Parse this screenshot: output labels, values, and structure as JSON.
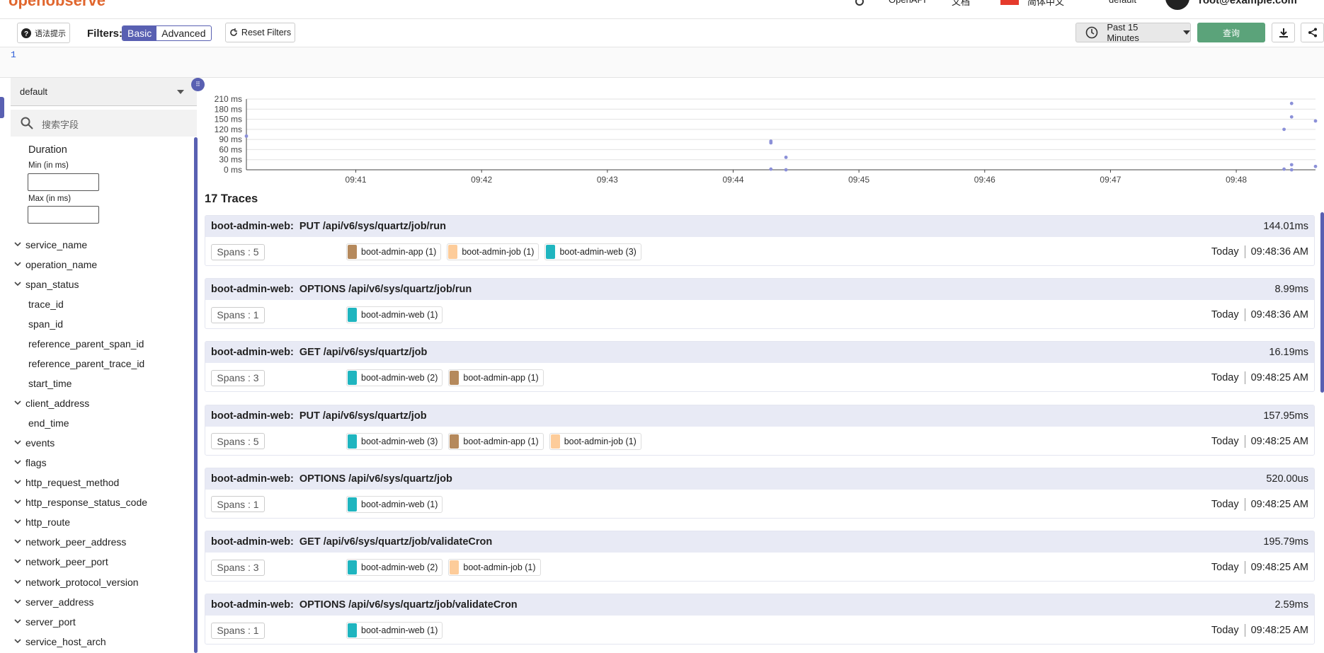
{
  "nav": {
    "logo": "openobserve",
    "items": [
      "OpenAPI",
      "文档",
      "简体中文",
      "default",
      "root@example.com"
    ]
  },
  "toolbar": {
    "syntax": "语法提示",
    "filters": "Filters:",
    "basic": "Basic",
    "advanced": "Advanced",
    "reset": "Reset Filters",
    "range": "Past 15 Minutes",
    "run": "查询"
  },
  "editor": {
    "line": "1"
  },
  "sidebar": {
    "stream": "default",
    "search": "搜索字段",
    "duration": {
      "title": "Duration",
      "min": "Min (in ms)",
      "max": "Max (in ms)"
    },
    "fields": [
      {
        "name": "service_name",
        "expand": true
      },
      {
        "name": "operation_name",
        "expand": true
      },
      {
        "name": "span_status",
        "expand": true
      },
      {
        "name": "trace_id",
        "expand": false
      },
      {
        "name": "span_id",
        "expand": false
      },
      {
        "name": "reference_parent_span_id",
        "expand": false
      },
      {
        "name": "reference_parent_trace_id",
        "expand": false
      },
      {
        "name": "start_time",
        "expand": false
      },
      {
        "name": "client_address",
        "expand": true
      },
      {
        "name": "end_time",
        "expand": false
      },
      {
        "name": "events",
        "expand": true
      },
      {
        "name": "flags",
        "expand": true
      },
      {
        "name": "http_request_method",
        "expand": true
      },
      {
        "name": "http_response_status_code",
        "expand": true
      },
      {
        "name": "http_route",
        "expand": true
      },
      {
        "name": "network_peer_address",
        "expand": true
      },
      {
        "name": "network_peer_port",
        "expand": true
      },
      {
        "name": "network_protocol_version",
        "expand": true
      },
      {
        "name": "server_address",
        "expand": true
      },
      {
        "name": "server_port",
        "expand": true
      },
      {
        "name": "service_host_arch",
        "expand": true
      }
    ]
  },
  "chart_data": {
    "type": "scatter",
    "color": "#8b90d8",
    "x": [
      40.13,
      44.3,
      44.3,
      44.42,
      44.3,
      44.42,
      48.44,
      48.44,
      48.38,
      48.63,
      48.44,
      48.38,
      48.44,
      48.63
    ],
    "values": [
      100,
      85,
      80,
      37,
      2,
      0,
      197,
      157,
      120,
      145,
      15,
      2,
      0,
      10
    ],
    "xlim": [
      40.13,
      48.63
    ],
    "xticks": [
      {
        "value": 41,
        "label": "09:41"
      },
      {
        "value": 42,
        "label": "09:42"
      },
      {
        "value": 43,
        "label": "09:43"
      },
      {
        "value": 44,
        "label": "09:44"
      },
      {
        "value": 45,
        "label": "09:45"
      },
      {
        "value": 46,
        "label": "09:46"
      },
      {
        "value": 47,
        "label": "09:47"
      },
      {
        "value": 48,
        "label": "09:48"
      }
    ],
    "ylim": [
      0,
      210
    ],
    "yticks": [
      {
        "value": 0,
        "label": "0 ms"
      },
      {
        "value": 30,
        "label": "30 ms"
      },
      {
        "value": 60,
        "label": "60 ms"
      },
      {
        "value": 90,
        "label": "90 ms"
      },
      {
        "value": 120,
        "label": "120 ms"
      },
      {
        "value": 150,
        "label": "150 ms"
      },
      {
        "value": 180,
        "label": "180 ms"
      },
      {
        "value": 210,
        "label": "210 ms"
      }
    ],
    "grid": true
  },
  "traces": {
    "title": "17 Traces",
    "items": [
      {
        "service": "boot-admin-web:",
        "operation": "PUT /api/v6/sys/quartz/job/run",
        "duration": "144.01ms",
        "spans": "Spans : 5",
        "chips": [
          {
            "label": "boot-admin-app (1)",
            "color": "#b5895c"
          },
          {
            "label": "boot-admin-job (1)",
            "color": "#fdcc9a"
          },
          {
            "label": "boot-admin-web (3)",
            "color": "#1fb5bf"
          }
        ],
        "day": "Today",
        "time": "09:48:36 AM"
      },
      {
        "service": "boot-admin-web:",
        "operation": "OPTIONS /api/v6/sys/quartz/job/run",
        "duration": "8.99ms",
        "spans": "Spans : 1",
        "chips": [
          {
            "label": "boot-admin-web (1)",
            "color": "#1fb5bf"
          }
        ],
        "day": "Today",
        "time": "09:48:36 AM"
      },
      {
        "service": "boot-admin-web:",
        "operation": "GET /api/v6/sys/quartz/job",
        "duration": "16.19ms",
        "spans": "Spans : 3",
        "chips": [
          {
            "label": "boot-admin-web (2)",
            "color": "#1fb5bf"
          },
          {
            "label": "boot-admin-app (1)",
            "color": "#b5895c"
          }
        ],
        "day": "Today",
        "time": "09:48:25 AM"
      },
      {
        "service": "boot-admin-web:",
        "operation": "PUT /api/v6/sys/quartz/job",
        "duration": "157.95ms",
        "spans": "Spans : 5",
        "chips": [
          {
            "label": "boot-admin-web (3)",
            "color": "#1fb5bf"
          },
          {
            "label": "boot-admin-app (1)",
            "color": "#b5895c"
          },
          {
            "label": "boot-admin-job (1)",
            "color": "#fdcc9a"
          }
        ],
        "day": "Today",
        "time": "09:48:25 AM"
      },
      {
        "service": "boot-admin-web:",
        "operation": "OPTIONS /api/v6/sys/quartz/job",
        "duration": "520.00us",
        "spans": "Spans : 1",
        "chips": [
          {
            "label": "boot-admin-web (1)",
            "color": "#1fb5bf"
          }
        ],
        "day": "Today",
        "time": "09:48:25 AM"
      },
      {
        "service": "boot-admin-web:",
        "operation": "GET /api/v6/sys/quartz/job/validateCron",
        "duration": "195.79ms",
        "spans": "Spans : 3",
        "chips": [
          {
            "label": "boot-admin-web (2)",
            "color": "#1fb5bf"
          },
          {
            "label": "boot-admin-job (1)",
            "color": "#fdcc9a"
          }
        ],
        "day": "Today",
        "time": "09:48:25 AM"
      },
      {
        "service": "boot-admin-web:",
        "operation": "OPTIONS /api/v6/sys/quartz/job/validateCron",
        "duration": "2.59ms",
        "spans": "Spans : 1",
        "chips": [
          {
            "label": "boot-admin-web (1)",
            "color": "#1fb5bf"
          }
        ],
        "day": "Today",
        "time": "09:48:25 AM"
      }
    ]
  }
}
